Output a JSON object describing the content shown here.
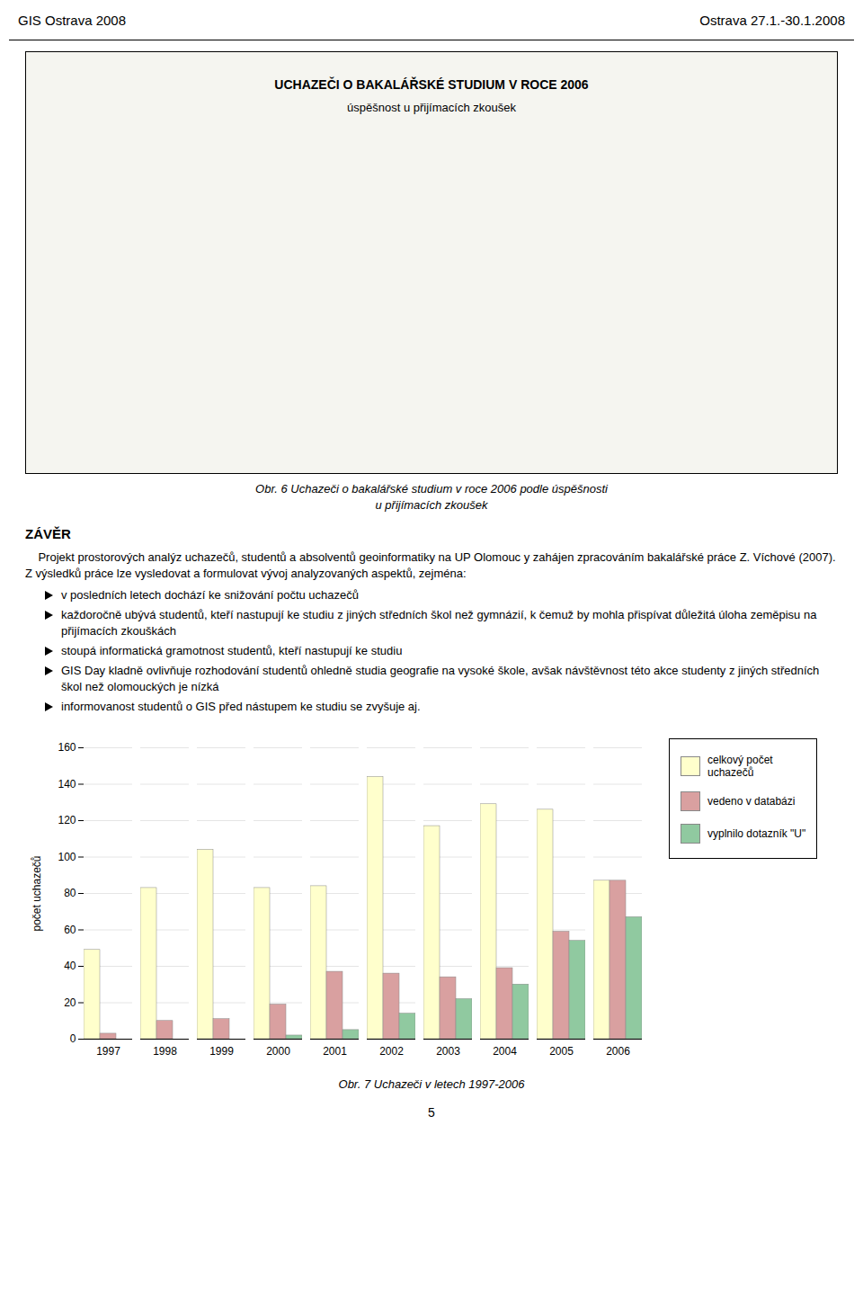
{
  "chart_data": {
    "type": "bar",
    "categories": [
      1997,
      1998,
      1999,
      2000,
      2001,
      2002,
      2003,
      2004,
      2005,
      2006
    ],
    "series": [
      {
        "name": "celkový počet\nuchazečů",
        "color": "#FFFFCC",
        "values": [
          49,
          83,
          104,
          83,
          84,
          144,
          117,
          129,
          126,
          87
        ]
      },
      {
        "name": "vedeno v databázi",
        "color": "#D9A0A0",
        "values": [
          3,
          10,
          11,
          19,
          37,
          36,
          34,
          39,
          59,
          87
        ]
      },
      {
        "name": "vyplnilo dotazník \"U\"",
        "color": "#90C9A0",
        "values": [
          0,
          0,
          0,
          2,
          5,
          14,
          22,
          30,
          54,
          67
        ]
      }
    ],
    "ylabel": "počet uchazečů",
    "ylim": [
      0,
      160
    ],
    "yticks": [
      0,
      20,
      40,
      60,
      80,
      100,
      120,
      140,
      160
    ],
    "grid": true,
    "legend": "right",
    "annotations": [
      "GIS Ostrava 2008",
      "Ostrava 27.1.-30.1.2008",
      "UCHAZEČI O BAKALÁŘSKÉ STUDIUM V ROCE 2006",
      "úspěšnost u přijímacích zkoušek",
      "Obr. 6 Uchazeči o bakalářské studium v roce 2006 podle úspěšnosti",
      "u přijímacích zkoušek",
      "ZÁVĚR",
      "    Projekt prostorových analýz uchazečů, studentů a absolventů geoinformatiky na UP Olomouc y zahájen zpracováním bakalářské práce Z. Víchové (2007). Z výsledků práce lze vysledovat a formulovat vývoj analyzovaných aspektů, zejména:",
      "v posledních letech dochází ke snižování počtu uchazečů",
      "každoročně ubývá studentů, kteří nastupují ke studiu z jiných středních škol než gymnázií, k čemuž by mohla přispívat důležitá úloha zeměpisu na přijímacích zkouškách",
      "stoupá informatická gramotnost studentů, kteří nastupují ke studiu",
      "GIS Day kladně ovlivňuje rozhodování studentů ohledně studia geografie na vysoké škole, avšak návštěvnost této akce studenty z jiných středních škol než olomouckých je nízká",
      "informovanost studentů o GIS před nástupem ke studiu se zvyšuje aj.",
      "Obr. 7 Uchazeči v letech 1997-2006",
      "5"
    ]
  }
}
